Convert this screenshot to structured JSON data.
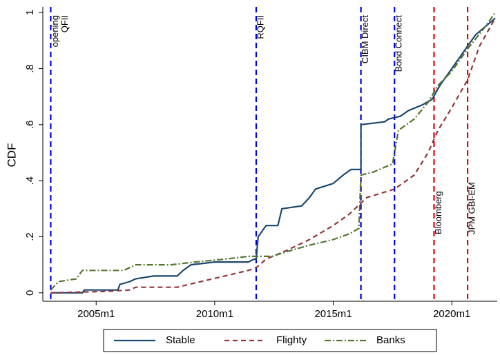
{
  "chart_data": {
    "type": "line",
    "ylabel": "CDF",
    "xlim": [
      "2002m10",
      "2021m12"
    ],
    "xticks": [
      "2005m1",
      "2010m1",
      "2015m1",
      "2020m1"
    ],
    "ylim": [
      -0.03,
      1.02
    ],
    "yticks": [
      0,
      {
        "value": 0.2,
        "label": ".2"
      },
      {
        "value": 0.4,
        "label": ".4"
      },
      {
        "value": 0.6,
        "label": ".6"
      },
      {
        "value": 0.8,
        "label": ".8"
      },
      1
    ],
    "grid": false,
    "legend": "bottom",
    "series": [
      {
        "name": "Stable",
        "color": "#1a476f",
        "line_style": "solid",
        "x": [
          "2003m2",
          "2004m6",
          "2004m7",
          "2005m12",
          "2006m1",
          "2006m6",
          "2006m9",
          "2007m6",
          "2008m6",
          "2008m9",
          "2009m1",
          "2010m1",
          "2011m6",
          "2011m9",
          "2011m10",
          "2011m11",
          "2012m3",
          "2012m9",
          "2012m11",
          "2013m9",
          "2014m1",
          "2014m4",
          "2015m1",
          "2015m6",
          "2015m10",
          "2016m3",
          "2016m3",
          "2017m3",
          "2017m5",
          "2017m11",
          "2018m3",
          "2018m10",
          "2019m3",
          "2019m7",
          "2020m1",
          "2020m8",
          "2021m1",
          "2021m6",
          "2021m11"
        ],
        "values": [
          0,
          0,
          0.01,
          0.01,
          0.03,
          0.04,
          0.05,
          0.06,
          0.06,
          0.08,
          0.1,
          0.11,
          0.11,
          0.12,
          0.12,
          0.2,
          0.24,
          0.24,
          0.3,
          0.31,
          0.34,
          0.37,
          0.39,
          0.42,
          0.44,
          0.44,
          0.6,
          0.61,
          0.62,
          0.63,
          0.65,
          0.67,
          0.69,
          0.74,
          0.8,
          0.87,
          0.92,
          0.95,
          0.98
        ]
      },
      {
        "name": "Flighty",
        "color": "#90353b",
        "line_style": "dash",
        "x": [
          "2003m2",
          "2005m6",
          "2006m6",
          "2006m9",
          "2008m6",
          "2009m6",
          "2010m6",
          "2011m6",
          "2011m10",
          "2012m3",
          "2013m1",
          "2014m1",
          "2015m1",
          "2015m9",
          "2016m3",
          "2016m6",
          "2017m8",
          "2018m6",
          "2019m1",
          "2019m6",
          "2020m1",
          "2020m9",
          "2021m3",
          "2021m11"
        ],
        "values": [
          0,
          0.005,
          0.01,
          0.02,
          0.02,
          0.04,
          0.06,
          0.08,
          0.09,
          0.12,
          0.15,
          0.19,
          0.24,
          0.28,
          0.32,
          0.34,
          0.37,
          0.42,
          0.5,
          0.58,
          0.66,
          0.76,
          0.88,
          0.98
        ]
      },
      {
        "name": "Banks",
        "color": "#55752f",
        "line_style": "dash-dot",
        "x": [
          "2003m2",
          "2003m6",
          "2004m3",
          "2004m6",
          "2006m3",
          "2006m9",
          "2008m3",
          "2009m3",
          "2010m6",
          "2011m6",
          "2012m6",
          "2013m3",
          "2014m1",
          "2015m1",
          "2015m9",
          "2016m2",
          "2016m3",
          "2016m9",
          "2017m7",
          "2017m10",
          "2018m6",
          "2019m1",
          "2019m6",
          "2020m1",
          "2020m9",
          "2021m6",
          "2021m11"
        ],
        "values": [
          0.01,
          0.04,
          0.05,
          0.08,
          0.08,
          0.1,
          0.1,
          0.11,
          0.12,
          0.13,
          0.13,
          0.15,
          0.17,
          0.19,
          0.21,
          0.23,
          0.42,
          0.43,
          0.46,
          0.58,
          0.62,
          0.68,
          0.74,
          0.79,
          0.87,
          0.95,
          1
        ]
      }
    ],
    "annotations": [
      {
        "x": "2003m2",
        "text": [
          "opening",
          "QFII"
        ],
        "color": "#0000e0",
        "position": "top"
      },
      {
        "x": "2011m10",
        "text": [
          "RQFII"
        ],
        "color": "#0000e0",
        "position": "top"
      },
      {
        "x": "2016m3",
        "text": [
          "CIBM Direct"
        ],
        "color": "#0000e0",
        "position": "top"
      },
      {
        "x": "2017m8",
        "text": [
          "Bond Connect"
        ],
        "color": "#0000e0",
        "position": "top"
      },
      {
        "x": "2019m4",
        "text": [
          "Bloomberg"
        ],
        "color": "#e8000b",
        "position": "bottom"
      },
      {
        "x": "2020m9",
        "text": [
          "JPM GBI-EM"
        ],
        "color": "#e8000b",
        "position": "bottom"
      }
    ]
  }
}
